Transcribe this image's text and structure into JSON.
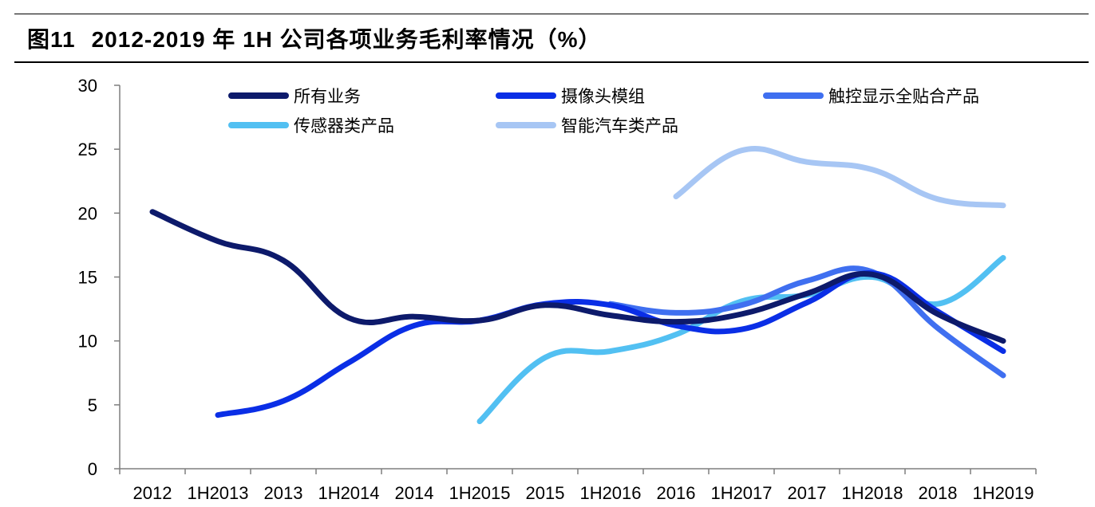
{
  "figure": {
    "number": "图11",
    "title": "2012-2019 年 1H 公司各项业务毛利率情况（%）"
  },
  "chart_data": {
    "type": "line",
    "title": "2012-2019 年 1H 公司各项业务毛利率情况（%）",
    "xlabel": "",
    "ylabel": "",
    "ylim": [
      0,
      30
    ],
    "yticks": [
      0,
      5,
      10,
      15,
      20,
      25,
      30
    ],
    "grid": false,
    "legend_position": "top",
    "categories": [
      "2012",
      "1H2013",
      "2013",
      "1H2014",
      "2014",
      "1H2015",
      "2015",
      "1H2016",
      "2016",
      "1H2017",
      "2017",
      "1H2018",
      "2018",
      "1H2019"
    ],
    "series": [
      {
        "name": "所有业务",
        "color": "#0d1a6b",
        "values": [
          20.1,
          17.8,
          16.3,
          11.8,
          11.9,
          11.6,
          12.8,
          12.0,
          11.5,
          12.1,
          13.7,
          15.2,
          12.1,
          10.0
        ]
      },
      {
        "name": "摄像头模组",
        "color": "#0a2ee6",
        "values": [
          null,
          4.2,
          5.3,
          8.3,
          11.2,
          11.6,
          12.9,
          12.8,
          11.2,
          10.9,
          13.0,
          15.3,
          12.3,
          9.2
        ]
      },
      {
        "name": "触控显示全贴合产品",
        "color": "#3f6ff0",
        "values": [
          null,
          null,
          null,
          null,
          null,
          null,
          null,
          12.9,
          12.2,
          12.8,
          14.7,
          15.4,
          11.0,
          7.3
        ]
      },
      {
        "name": "传感器类产品",
        "color": "#52c0f2",
        "values": [
          null,
          null,
          null,
          null,
          null,
          3.7,
          8.7,
          9.2,
          10.5,
          13.1,
          13.6,
          15.0,
          12.9,
          16.5
        ]
      },
      {
        "name": "智能汽车类产品",
        "color": "#a7c6f4",
        "values": [
          null,
          null,
          null,
          null,
          null,
          null,
          null,
          null,
          21.3,
          24.9,
          24.0,
          23.4,
          21.1,
          20.6
        ]
      }
    ]
  }
}
